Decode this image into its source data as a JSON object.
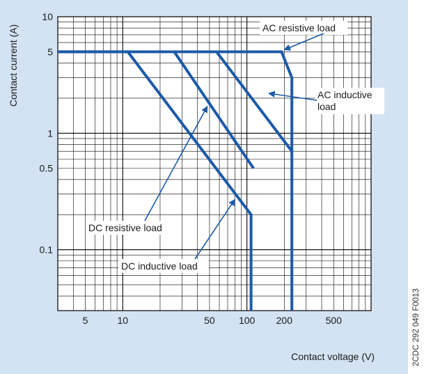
{
  "chart_data": {
    "type": "line",
    "title": "",
    "xlabel": "Contact voltage (V)",
    "ylabel": "Contact current (A)",
    "x_scale": "log",
    "y_scale": "log",
    "xlim": [
      3,
      1000
    ],
    "ylim": [
      0.03,
      10
    ],
    "x_ticks": [
      5,
      10,
      50,
      100,
      200,
      500
    ],
    "x_tick_labels": [
      "5",
      "10",
      "50",
      "100",
      "200",
      "500"
    ],
    "y_ticks": [
      0.1,
      0.5,
      1,
      5,
      10
    ],
    "y_tick_labels": [
      "0.1",
      "0.5",
      "1",
      "5",
      "10"
    ],
    "grid": true,
    "line_color": "#1c5aa8",
    "series": [
      {
        "name": "DC inductive load",
        "x": [
          3,
          11,
          108,
          108
        ],
        "y": [
          5,
          5,
          0.2,
          0.03
        ]
      },
      {
        "name": "DC resistive load",
        "x": [
          26,
          113,
          113
        ],
        "y": [
          5,
          0.5,
          0.5
        ]
      },
      {
        "name": "AC inductive load",
        "x": [
          57,
          230,
          230
        ],
        "y": [
          5,
          0.7,
          0.7
        ]
      },
      {
        "name": "AC resistive load",
        "x": [
          3,
          190,
          230,
          230
        ],
        "y": [
          5,
          5,
          3,
          0.03
        ]
      }
    ],
    "annotations": [
      {
        "text": "AC resistive load",
        "points_to": {
          "x": 200,
          "y": 5.2
        }
      },
      {
        "text": "AC inductive load",
        "points_to": {
          "x": 150,
          "y": 2.2
        }
      },
      {
        "text": "DC resistive load",
        "points_to": {
          "x": 48,
          "y": 1.7
        }
      },
      {
        "text": "DC inductive load",
        "points_to": {
          "x": 80,
          "y": 0.27
        }
      }
    ],
    "side_code": "2CDC 292 049 F0013"
  }
}
